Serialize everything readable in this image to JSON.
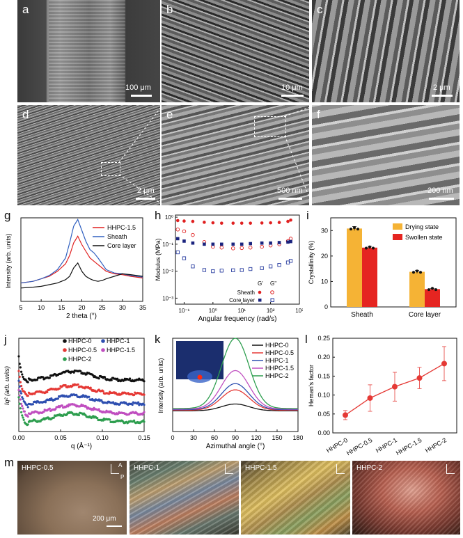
{
  "panel_labels": {
    "a": "a",
    "b": "b",
    "c": "c",
    "d": "d",
    "e": "e",
    "f": "f",
    "g": "g",
    "h": "h",
    "i": "i",
    "j": "j",
    "k": "k",
    "l": "l",
    "m": "m"
  },
  "sem": {
    "a_scale": "100 μm",
    "b_scale": "10 μm",
    "c_scale": "2 μm",
    "d_scale": "2 μm",
    "e_scale": "500 nm",
    "f_scale": "200 nm"
  },
  "chart_data": [
    {
      "id": "g",
      "type": "line",
      "xlabel": "2 theta (°)",
      "ylabel": "Intensity (arb. units)",
      "xlim": [
        5,
        35
      ],
      "xticks": [
        "5",
        "10",
        "15",
        "20",
        "25",
        "30",
        "35"
      ],
      "legend_placement": "top-right",
      "series": [
        {
          "name": "HHPC-1.5",
          "color": "#e02020",
          "x": [
            5,
            8,
            10,
            12,
            14,
            16,
            17,
            18,
            19,
            20,
            21,
            22,
            23,
            24,
            25,
            26,
            28,
            30,
            32,
            35
          ],
          "y": [
            0.22,
            0.24,
            0.27,
            0.3,
            0.36,
            0.45,
            0.55,
            0.7,
            0.78,
            0.68,
            0.6,
            0.52,
            0.48,
            0.44,
            0.4,
            0.36,
            0.33,
            0.32,
            0.3,
            0.28
          ]
        },
        {
          "name": "Sheath",
          "color": "#3060c0",
          "x": [
            5,
            8,
            10,
            12,
            14,
            16,
            17,
            18,
            19,
            20,
            21,
            22,
            23,
            24,
            25,
            26,
            28,
            30,
            32,
            35
          ],
          "y": [
            0.22,
            0.24,
            0.27,
            0.31,
            0.38,
            0.52,
            0.7,
            0.9,
            0.98,
            0.85,
            0.72,
            0.62,
            0.58,
            0.52,
            0.45,
            0.38,
            0.34,
            0.33,
            0.31,
            0.29
          ]
        },
        {
          "name": "Core layer",
          "color": "#111111",
          "x": [
            5,
            8,
            10,
            12,
            14,
            16,
            17,
            18,
            19,
            20,
            21,
            22,
            23,
            24,
            25,
            26,
            28,
            30,
            32,
            35
          ],
          "y": [
            0.16,
            0.17,
            0.18,
            0.2,
            0.22,
            0.26,
            0.3,
            0.4,
            0.46,
            0.36,
            0.3,
            0.27,
            0.25,
            0.24,
            0.25,
            0.27,
            0.3,
            0.33,
            0.32,
            0.3
          ]
        }
      ]
    },
    {
      "id": "h",
      "type": "scatter",
      "xlabel": "Angular frequency (rad/s)",
      "ylabel": "Modulus (MPa)",
      "xscale": "log",
      "yscale": "log",
      "xlim": [
        0.05,
        1000
      ],
      "ylim": [
        0.0006,
        1.2
      ],
      "xticks": [
        "10⁻¹",
        "10⁰",
        "10¹",
        "10²",
        "10³"
      ],
      "yticks": [
        "10⁰",
        "10⁻¹",
        "10⁻²",
        "10⁻³"
      ],
      "legend": {
        "sheath": "Sheath",
        "core": "Core layer",
        "gp": "G'",
        "gpp": "G''"
      },
      "series": [
        {
          "name": "Sheath G'",
          "color": "#e02020",
          "marker": "filled-circle",
          "x": [
            0.06,
            0.1,
            0.2,
            0.5,
            1,
            2,
            5,
            10,
            20,
            50,
            100,
            200,
            400,
            500
          ],
          "y": [
            0.75,
            0.72,
            0.7,
            0.65,
            0.62,
            0.6,
            0.6,
            0.6,
            0.6,
            0.61,
            0.62,
            0.64,
            0.7,
            0.78
          ]
        },
        {
          "name": "Sheath G''",
          "color": "#e02020",
          "marker": "open-circle",
          "x": [
            0.06,
            0.1,
            0.2,
            0.5,
            1,
            2,
            5,
            10,
            20,
            50,
            100,
            200,
            400,
            500
          ],
          "y": [
            0.35,
            0.3,
            0.22,
            0.12,
            0.08,
            0.075,
            0.07,
            0.072,
            0.075,
            0.08,
            0.09,
            0.1,
            0.13,
            0.16
          ]
        },
        {
          "name": "Core layer G'",
          "color": "#1a237e",
          "marker": "filled-square",
          "x": [
            0.06,
            0.1,
            0.2,
            0.5,
            1,
            2,
            5,
            10,
            20,
            50,
            100,
            200,
            400,
            500
          ],
          "y": [
            0.16,
            0.13,
            0.11,
            0.1,
            0.1,
            0.1,
            0.1,
            0.1,
            0.105,
            0.11,
            0.11,
            0.115,
            0.12,
            0.125
          ]
        },
        {
          "name": "Core layer G''",
          "color": "#2a3ea0",
          "marker": "open-square",
          "x": [
            0.06,
            0.1,
            0.2,
            0.5,
            1,
            2,
            5,
            10,
            20,
            50,
            100,
            200,
            400,
            500
          ],
          "y": [
            0.05,
            0.03,
            0.015,
            0.011,
            0.01,
            0.0105,
            0.0108,
            0.011,
            0.012,
            0.013,
            0.015,
            0.017,
            0.021,
            0.024
          ]
        }
      ]
    },
    {
      "id": "i",
      "type": "bar",
      "ylabel": "Crystallinity (%)",
      "ylim": [
        0,
        35
      ],
      "yticks": [
        "0",
        "10",
        "20",
        "30"
      ],
      "categories": [
        "Sheath",
        "Core layer"
      ],
      "series": [
        {
          "name": "Drying state",
          "color": "#f5b335",
          "values": [
            30.8,
            13.8
          ],
          "errors": [
            0.8,
            0.6
          ]
        },
        {
          "name": "Swollen state",
          "color": "#e52521",
          "values": [
            23.3,
            7.0
          ],
          "errors": [
            0.5,
            0.3
          ]
        }
      ]
    },
    {
      "id": "j",
      "type": "scatter",
      "xlabel": "q (Å⁻¹)",
      "ylabel": "Iq² (arb. units)",
      "xlim": [
        0,
        0.15
      ],
      "xticks": [
        "0.00",
        "0.05",
        "0.10",
        "0.15"
      ],
      "series": [
        {
          "name": "HHPC-0",
          "color": "#111111"
        },
        {
          "name": "HHPC-0.5",
          "color": "#e53935"
        },
        {
          "name": "HHPC-1",
          "color": "#2e4fb0"
        },
        {
          "name": "HHPC-1.5",
          "color": "#c04fc0"
        },
        {
          "name": "HHPC-2",
          "color": "#2e9e4f"
        }
      ]
    },
    {
      "id": "k",
      "type": "line",
      "xlabel": "Azimuthal angle (°)",
      "ylabel": "Intensity (arb. units)",
      "xlim": [
        0,
        180
      ],
      "xticks": [
        "0",
        "30",
        "60",
        "90",
        "120",
        "150",
        "180"
      ],
      "series": [
        {
          "name": "HHPC-0",
          "color": "#111111",
          "peak": 0.06
        },
        {
          "name": "HHPC-0.5",
          "color": "#e53935",
          "peak": 0.18
        },
        {
          "name": "HHPC-1",
          "color": "#2e4fb0",
          "peak": 0.23
        },
        {
          "name": "HHPC-1.5",
          "color": "#c04fc0",
          "peak": 0.34
        },
        {
          "name": "HHPC-2",
          "color": "#2e9e4f",
          "peak": 0.62
        }
      ]
    },
    {
      "id": "l",
      "type": "line",
      "ylabel": "Heman's factor",
      "ylim": [
        0,
        0.25
      ],
      "yticks": [
        "0.00",
        "0.05",
        "0.10",
        "0.15",
        "0.20",
        "0.25"
      ],
      "categories": [
        "HHPC-0",
        "HHPC-0.5",
        "HHPC-1",
        "HHPC-1.5",
        "HHPC-2"
      ],
      "values": [
        0.047,
        0.092,
        0.122,
        0.145,
        0.183
      ],
      "errors": [
        0.012,
        0.035,
        0.038,
        0.028,
        0.045
      ],
      "color": "#e53935"
    }
  ],
  "pom": {
    "titles": [
      "HHPC-0.5",
      "HHPC-1",
      "HHPC-1.5",
      "HHPC-2"
    ],
    "scale": "200 μm",
    "axis_a": "A",
    "axis_p": "P"
  }
}
